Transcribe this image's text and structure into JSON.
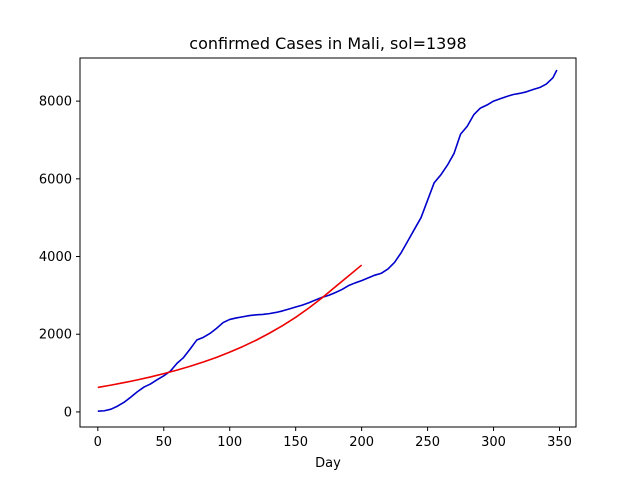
{
  "chart_data": {
    "type": "line",
    "title": "confirmed Cases in Mali, sol=1398",
    "xlabel": "Day",
    "ylabel": "",
    "xlim": [
      -13.5,
      362.5
    ],
    "ylim": [
      -388,
      9110
    ],
    "xticks": [
      0,
      50,
      100,
      150,
      200,
      250,
      300,
      350
    ],
    "xtick_labels": [
      "0",
      "50",
      "100",
      "150",
      "200",
      "250",
      "300",
      "350"
    ],
    "yticks": [
      0,
      2000,
      4000,
      6000,
      8000
    ],
    "ytick_labels": [
      "0",
      "2000",
      "4000",
      "6000",
      "8000"
    ],
    "grid": false,
    "legend": "none",
    "series": [
      {
        "color": "#0000cc",
        "x": [
          0,
          5,
          10,
          15,
          20,
          25,
          30,
          35,
          40,
          45,
          50,
          55,
          60,
          65,
          70,
          75,
          80,
          85,
          90,
          95,
          100,
          105,
          110,
          115,
          120,
          125,
          130,
          135,
          140,
          145,
          150,
          155,
          160,
          165,
          170,
          175,
          180,
          185,
          190,
          195,
          200,
          205,
          210,
          215,
          220,
          225,
          230,
          235,
          240,
          245,
          250,
          255,
          260,
          265,
          270,
          275,
          280,
          285,
          290,
          295,
          300,
          305,
          310,
          315,
          320,
          325,
          330,
          335,
          340,
          345,
          348
        ],
        "values": [
          20,
          30,
          70,
          150,
          250,
          380,
          520,
          640,
          720,
          830,
          930,
          1050,
          1250,
          1400,
          1620,
          1850,
          1920,
          2020,
          2150,
          2300,
          2380,
          2420,
          2450,
          2480,
          2500,
          2510,
          2530,
          2560,
          2600,
          2650,
          2700,
          2750,
          2810,
          2880,
          2950,
          3000,
          3070,
          3150,
          3250,
          3320,
          3380,
          3450,
          3520,
          3570,
          3680,
          3850,
          4100,
          4400,
          4700,
          5000,
          5450,
          5900,
          6100,
          6350,
          6650,
          7150,
          7350,
          7650,
          7820,
          7900,
          8000,
          8060,
          8120,
          8170,
          8200,
          8240,
          8300,
          8350,
          8440,
          8600,
          8800
        ]
      },
      {
        "color": "#ee0000",
        "x": [
          0,
          10,
          20,
          30,
          40,
          50,
          60,
          70,
          80,
          90,
          100,
          110,
          120,
          130,
          140,
          150,
          160,
          170,
          180,
          190,
          200
        ],
        "values": [
          630,
          690,
          755,
          825,
          900,
          985,
          1075,
          1175,
          1285,
          1405,
          1540,
          1685,
          1845,
          2025,
          2220,
          2435,
          2675,
          2935,
          3220,
          3500,
          3780
        ]
      }
    ]
  }
}
